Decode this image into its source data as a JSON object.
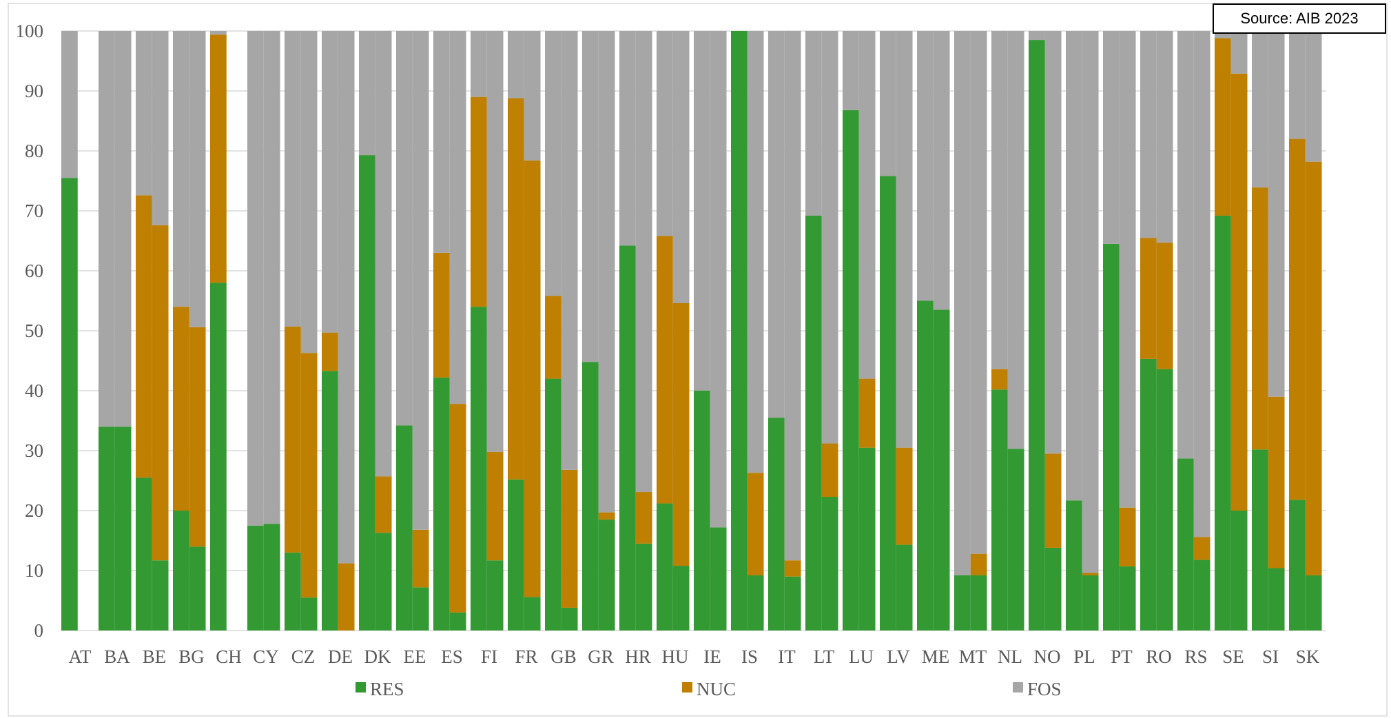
{
  "chart_data": {
    "type": "bar",
    "stacked": true,
    "annotation": "Source: AIB 2023",
    "xlabel": "",
    "ylabel": "",
    "ylim": [
      0,
      100
    ],
    "yticks": [
      0,
      10,
      20,
      30,
      40,
      50,
      60,
      70,
      80,
      90,
      100
    ],
    "grid": true,
    "legend_position": "bottom",
    "colors": {
      "RES": "#339933",
      "NUC": "#bf7f00",
      "FOS": "#a6a6a6"
    },
    "categories": [
      "AT",
      "BA",
      "BE",
      "BG",
      "CH",
      "CY",
      "CZ",
      "DE",
      "DK",
      "EE",
      "ES",
      "FI",
      "FR",
      "GB",
      "GR",
      "HR",
      "HU",
      "IE",
      "IS",
      "IT",
      "LT",
      "LU",
      "LV",
      "ME",
      "MT",
      "NL",
      "NO",
      "PL",
      "PT",
      "RO",
      "RS",
      "SE",
      "SI",
      "SK"
    ],
    "series": [
      {
        "name": "RES",
        "pairs": [
          [
            75.5,
            null
          ],
          [
            34,
            34
          ],
          [
            25.5,
            11.7
          ],
          [
            20,
            14
          ],
          [
            58,
            null
          ],
          [
            17.5,
            17.8
          ],
          [
            13,
            5.5
          ],
          [
            43.3,
            0
          ],
          [
            79.3,
            16.3
          ],
          [
            34.2,
            7.2
          ],
          [
            42.2,
            3
          ],
          [
            54,
            11.7
          ],
          [
            25.2,
            5.6
          ],
          [
            42,
            3.8
          ],
          [
            44.8,
            18.5
          ],
          [
            64.2,
            14.5
          ],
          [
            21.2,
            10.8
          ],
          [
            40,
            17.2
          ],
          [
            100,
            9.2
          ],
          [
            35.5,
            9
          ],
          [
            69.2,
            22.3
          ],
          [
            86.8,
            30.5
          ],
          [
            75.8,
            14.3
          ],
          [
            55,
            53.5
          ],
          [
            9.2,
            9.2
          ],
          [
            40.2,
            30.3
          ],
          [
            98.5,
            13.8
          ],
          [
            21.7,
            9.2
          ],
          [
            64.5,
            10.7
          ],
          [
            45.3,
            43.6
          ],
          [
            28.7,
            11.8
          ],
          [
            69.2,
            20
          ],
          [
            30.2,
            10.4
          ],
          [
            21.8,
            9.2
          ]
        ]
      },
      {
        "name": "NUC",
        "pairs": [
          [
            0,
            null
          ],
          [
            0,
            0
          ],
          [
            47.1,
            55.9
          ],
          [
            34,
            36.6
          ],
          [
            41.4,
            null
          ],
          [
            0,
            0
          ],
          [
            37.7,
            40.8
          ],
          [
            6.4,
            11.2
          ],
          [
            0,
            9.4
          ],
          [
            0,
            9.6
          ],
          [
            20.8,
            34.8
          ],
          [
            35,
            18.1
          ],
          [
            63.6,
            72.8
          ],
          [
            13.8,
            23
          ],
          [
            0,
            1.2
          ],
          [
            0,
            8.6
          ],
          [
            44.6,
            43.8
          ],
          [
            0,
            0
          ],
          [
            0,
            17.1
          ],
          [
            0,
            2.7
          ],
          [
            0,
            8.9
          ],
          [
            0,
            11.5
          ],
          [
            0,
            16.2
          ],
          [
            0,
            0
          ],
          [
            0,
            3.6
          ],
          [
            3.4,
            0
          ],
          [
            0,
            15.7
          ],
          [
            0,
            0.4
          ],
          [
            0,
            9.8
          ],
          [
            20.2,
            21.1
          ],
          [
            0,
            3.8
          ],
          [
            29.6,
            72.9
          ],
          [
            43.7,
            28.6
          ],
          [
            60.2,
            69
          ]
        ]
      },
      {
        "name": "FOS",
        "pairs": [
          [
            24.5,
            null
          ],
          [
            66,
            66
          ],
          [
            27.4,
            32.4
          ],
          [
            46,
            49.4
          ],
          [
            0.6,
            null
          ],
          [
            82.5,
            82.2
          ],
          [
            49.3,
            53.7
          ],
          [
            50.3,
            88.8
          ],
          [
            20.7,
            74.3
          ],
          [
            65.8,
            83.2
          ],
          [
            37,
            62.2
          ],
          [
            11,
            70.2
          ],
          [
            11.2,
            21.6
          ],
          [
            44.2,
            73.2
          ],
          [
            55.2,
            80.3
          ],
          [
            35.8,
            76.9
          ],
          [
            34.2,
            45.4
          ],
          [
            60,
            82.8
          ],
          [
            0,
            73.7
          ],
          [
            64.5,
            88.3
          ],
          [
            30.8,
            68.8
          ],
          [
            13.2,
            58
          ],
          [
            24.2,
            69.5
          ],
          [
            45,
            46.5
          ],
          [
            90.8,
            87.2
          ],
          [
            56.4,
            69.7
          ],
          [
            1.5,
            70.5
          ],
          [
            78.3,
            90.4
          ],
          [
            35.5,
            79.5
          ],
          [
            34.5,
            35.3
          ],
          [
            71.3,
            84.4
          ],
          [
            1.2,
            7.1
          ],
          [
            26.1,
            61
          ],
          [
            18,
            21.8
          ]
        ]
      }
    ]
  }
}
